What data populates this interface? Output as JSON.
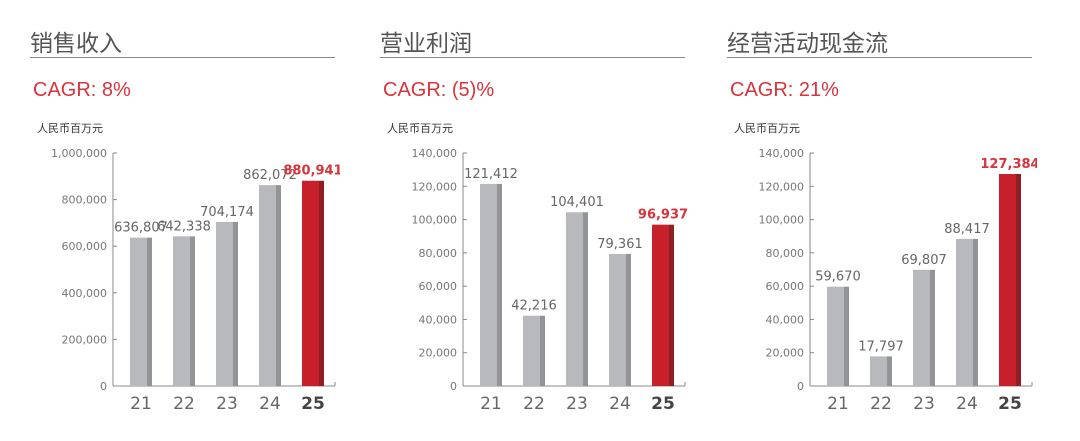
{
  "colors": {
    "bar": "#b8b9bd",
    "bar_shade": "#939498",
    "highlight": "#c8202a",
    "highlight_shade": "#8e1f24",
    "label": "#666",
    "highlight_label": "#d9333b"
  },
  "chart_data": [
    {
      "type": "bar",
      "title": "销售收入",
      "cagr": "CAGR: 8%",
      "unit": "人民币百万元",
      "categories": [
        "21",
        "22",
        "23",
        "24",
        "25"
      ],
      "values": [
        636807,
        642338,
        704174,
        862072,
        880941
      ],
      "value_labels": [
        "636,807",
        "642,338",
        "704,174",
        "862,072",
        "880,941"
      ],
      "ylim": [
        0,
        1000000
      ],
      "yticks": [
        "0",
        "200,000",
        "400,000",
        "600,000",
        "800,000",
        "1,000,000"
      ],
      "ytick_values": [
        0,
        200000,
        400000,
        600000,
        800000,
        1000000
      ],
      "highlight_index": 4
    },
    {
      "type": "bar",
      "title": "营业利润",
      "cagr": "CAGR: (5)%",
      "unit": "人民币百万元",
      "categories": [
        "21",
        "22",
        "23",
        "24",
        "25"
      ],
      "values": [
        121412,
        42216,
        104401,
        79361,
        96937
      ],
      "value_labels": [
        "121,412",
        "42,216",
        "104,401",
        "79,361",
        "96,937"
      ],
      "ylim": [
        0,
        140000
      ],
      "yticks": [
        "0",
        "20,000",
        "40,000",
        "60,000",
        "80,000",
        "100,000",
        "120,000",
        "140,000"
      ],
      "ytick_values": [
        0,
        20000,
        40000,
        60000,
        80000,
        100000,
        120000,
        140000
      ],
      "highlight_index": 4
    },
    {
      "type": "bar",
      "title": "经营活动现金流",
      "cagr": "CAGR: 21%",
      "unit": "人民币百万元",
      "categories": [
        "21",
        "22",
        "23",
        "24",
        "25"
      ],
      "values": [
        59670,
        17797,
        69807,
        88417,
        127384
      ],
      "value_labels": [
        "59,670",
        "17,797",
        "69,807",
        "88,417",
        "127,384"
      ],
      "ylim": [
        0,
        140000
      ],
      "yticks": [
        "0",
        "20,000",
        "40,000",
        "60,000",
        "80,000",
        "100,000",
        "120,000",
        "140,000"
      ],
      "ytick_values": [
        0,
        20000,
        40000,
        60000,
        80000,
        100000,
        120000,
        140000
      ],
      "highlight_index": 4
    }
  ]
}
